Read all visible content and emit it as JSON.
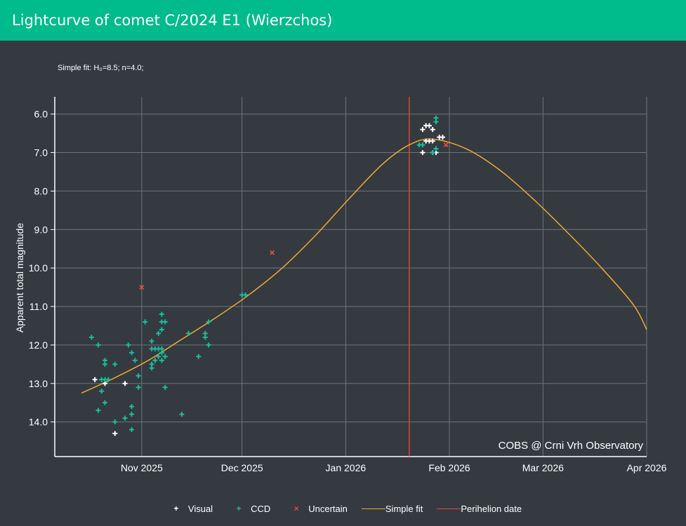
{
  "header": {
    "title": "Lightcurve of comet C/2024 E1 (Wierzchos)"
  },
  "chart_data": {
    "type": "scatter",
    "subtitle": "Simple fit: H₀=8.5; n=4.0;",
    "ylabel": "Apparent total magnitude",
    "watermark": "COBS @ Crni Vrh Observatory",
    "ylim": [
      14.9,
      5.55
    ],
    "y_reversed": true,
    "y_ticks": [
      6.0,
      7.0,
      8.0,
      9.0,
      10.0,
      11.0,
      12.0,
      13.0,
      14.0
    ],
    "y_tick_labels": [
      "6.0",
      "7.0",
      "8.0",
      "9.0",
      "10.0",
      "11.0",
      "12.0",
      "13.0",
      "14.0"
    ],
    "xlim": [
      "2025-10-06",
      "2026-04-01"
    ],
    "x_ticks": [
      "2025-11-01",
      "2025-12-01",
      "2026-01-01",
      "2026-02-01",
      "2026-03-01",
      "2026-04-01"
    ],
    "x_tick_labels": [
      "Nov 2025",
      "Dec 2025",
      "Jan 2026",
      "Feb 2026",
      "Mar 2026",
      "Apr 2026"
    ],
    "perihelion_date": "2026-01-20",
    "legend": {
      "visual": "Visual",
      "ccd": "CCD",
      "uncertain": "Uncertain",
      "fit": "Simple fit",
      "perihelion": "Perihelion date"
    },
    "colors": {
      "visual": "#ffffff",
      "ccd": "#1abc9c",
      "uncertain": "#e74c3c",
      "fit": "#f0a830",
      "perihelion": "#e74c3c",
      "grid": "#6c757d",
      "text": "#ffffff"
    },
    "series": [
      {
        "name": "Visual",
        "points": [
          [
            "2025-10-18",
            12.9
          ],
          [
            "2025-10-21",
            13.0
          ],
          [
            "2025-10-27",
            13.0
          ],
          [
            "2025-10-24",
            14.3
          ],
          [
            "2026-01-24",
            6.4
          ],
          [
            "2026-01-25",
            6.3
          ],
          [
            "2026-01-26",
            6.3
          ],
          [
            "2026-01-27",
            6.4
          ],
          [
            "2026-01-25",
            6.7
          ],
          [
            "2026-01-26",
            6.7
          ],
          [
            "2026-01-27",
            6.7
          ],
          [
            "2026-01-29",
            6.6
          ],
          [
            "2026-01-30",
            6.6
          ],
          [
            "2026-01-24",
            7.0
          ],
          [
            "2026-01-27",
            7.0
          ],
          [
            "2026-01-28",
            7.0
          ]
        ]
      },
      {
        "name": "CCD",
        "points": [
          [
            "2025-10-17",
            11.8
          ],
          [
            "2025-10-19",
            12.0
          ],
          [
            "2025-10-21",
            12.4
          ],
          [
            "2025-10-21",
            12.5
          ],
          [
            "2025-10-24",
            12.5
          ],
          [
            "2025-10-20",
            12.9
          ],
          [
            "2025-10-21",
            12.9
          ],
          [
            "2025-10-22",
            12.9
          ],
          [
            "2025-10-20",
            13.2
          ],
          [
            "2025-10-21",
            13.5
          ],
          [
            "2025-10-19",
            13.7
          ],
          [
            "2025-10-24",
            14.0
          ],
          [
            "2025-10-27",
            13.9
          ],
          [
            "2025-10-28",
            12.0
          ],
          [
            "2025-10-29",
            12.2
          ],
          [
            "2025-10-30",
            12.4
          ],
          [
            "2025-10-31",
            12.8
          ],
          [
            "2025-10-31",
            13.1
          ],
          [
            "2025-10-29",
            13.6
          ],
          [
            "2025-10-29",
            13.8
          ],
          [
            "2025-10-29",
            14.2
          ],
          [
            "2025-11-02",
            11.4
          ],
          [
            "2025-11-04",
            11.9
          ],
          [
            "2025-11-04",
            12.1
          ],
          [
            "2025-11-05",
            12.1
          ],
          [
            "2025-11-06",
            12.1
          ],
          [
            "2025-11-07",
            12.1
          ],
          [
            "2025-11-07",
            12.2
          ],
          [
            "2025-11-06",
            12.3
          ],
          [
            "2025-11-08",
            12.3
          ],
          [
            "2025-11-05",
            12.4
          ],
          [
            "2025-11-07",
            12.4
          ],
          [
            "2025-11-04",
            12.5
          ],
          [
            "2025-11-04",
            12.6
          ],
          [
            "2025-11-06",
            11.7
          ],
          [
            "2025-11-07",
            11.6
          ],
          [
            "2025-11-07",
            11.4
          ],
          [
            "2025-11-08",
            11.4
          ],
          [
            "2025-11-07",
            11.2
          ],
          [
            "2025-11-08",
            13.1
          ],
          [
            "2025-11-13",
            13.8
          ],
          [
            "2025-11-15",
            11.7
          ],
          [
            "2025-11-18",
            12.3
          ],
          [
            "2025-11-20",
            11.7
          ],
          [
            "2025-11-20",
            11.8
          ],
          [
            "2025-11-21",
            11.4
          ],
          [
            "2025-11-21",
            12.0
          ],
          [
            "2025-12-01",
            10.7
          ],
          [
            "2025-12-02",
            10.7
          ],
          [
            "2026-01-23",
            6.8
          ],
          [
            "2026-01-24",
            6.8
          ],
          [
            "2026-01-27",
            7.0
          ],
          [
            "2026-01-28",
            6.9
          ],
          [
            "2026-01-28",
            6.2
          ],
          [
            "2026-01-28",
            6.1
          ]
        ]
      },
      {
        "name": "Uncertain",
        "points": [
          [
            "2025-11-01",
            10.5
          ],
          [
            "2025-12-10",
            9.6
          ],
          [
            "2026-01-31",
            6.8
          ]
        ]
      },
      {
        "name": "Simple fit",
        "x": [
          "2025-10-14",
          "2025-10-24",
          "2025-11-03",
          "2025-11-13",
          "2025-11-23",
          "2025-12-03",
          "2025-12-13",
          "2025-12-23",
          "2026-01-02",
          "2026-01-12",
          "2026-01-20",
          "2026-01-27",
          "2026-02-06",
          "2026-02-16",
          "2026-02-26",
          "2026-03-08",
          "2026-03-18",
          "2026-03-28",
          "2026-04-01"
        ],
        "y": [
          13.25,
          12.85,
          12.4,
          11.85,
          11.3,
          10.7,
          10.0,
          9.15,
          8.2,
          7.3,
          6.8,
          6.65,
          6.9,
          7.45,
          8.2,
          9.05,
          9.95,
          10.95,
          11.6
        ]
      }
    ]
  }
}
